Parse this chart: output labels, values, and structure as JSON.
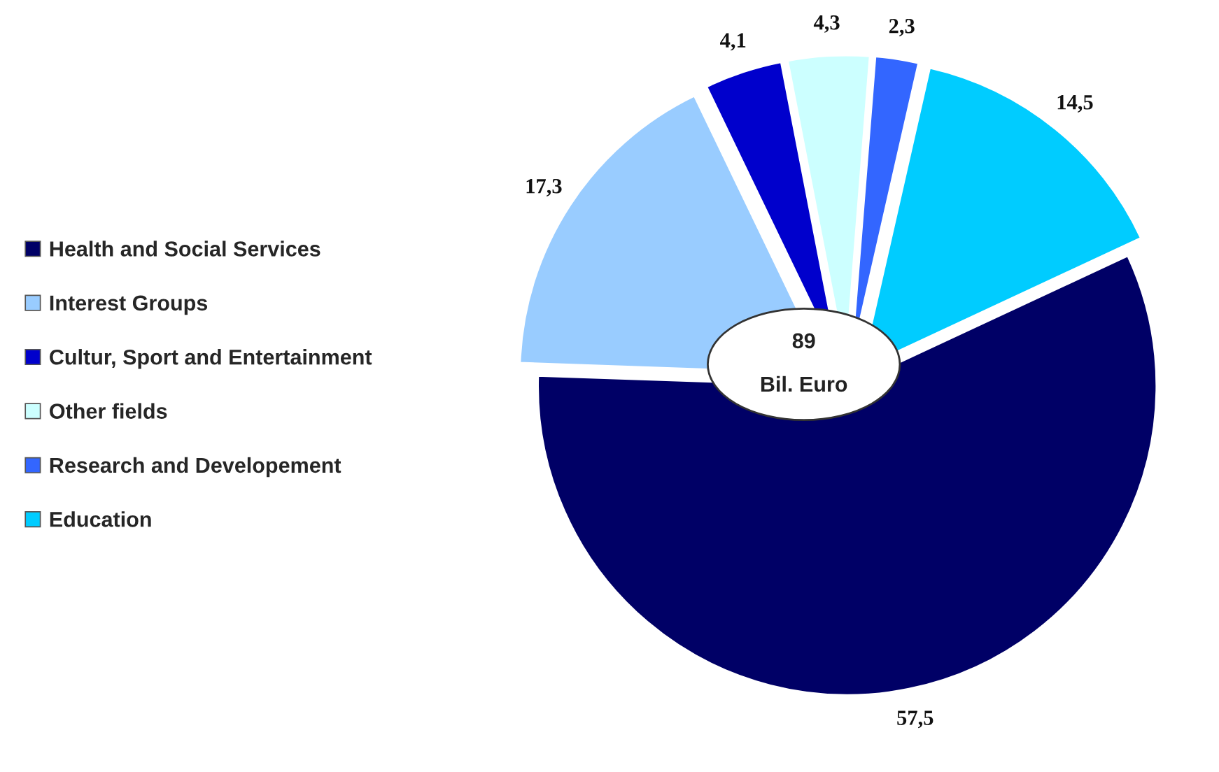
{
  "chart_data": {
    "type": "pie",
    "categories": [
      "Health and Social Services",
      "Interest Groups",
      "Cultur, Sport and Entertainment",
      "Other fields",
      "Research and Developement",
      "Education"
    ],
    "values": [
      57.5,
      17.3,
      4.1,
      4.3,
      2.3,
      14.5
    ],
    "value_labels": [
      "57,5",
      "17,3",
      "4,1",
      "4,3",
      "2,3",
      "14,5"
    ],
    "colors": [
      "#000066",
      "#99ccff",
      "#0000cc",
      "#ccffff",
      "#3366ff",
      "#00ccff"
    ],
    "annotations": [
      "89",
      "Bil. Euro"
    ],
    "legend": "left"
  }
}
